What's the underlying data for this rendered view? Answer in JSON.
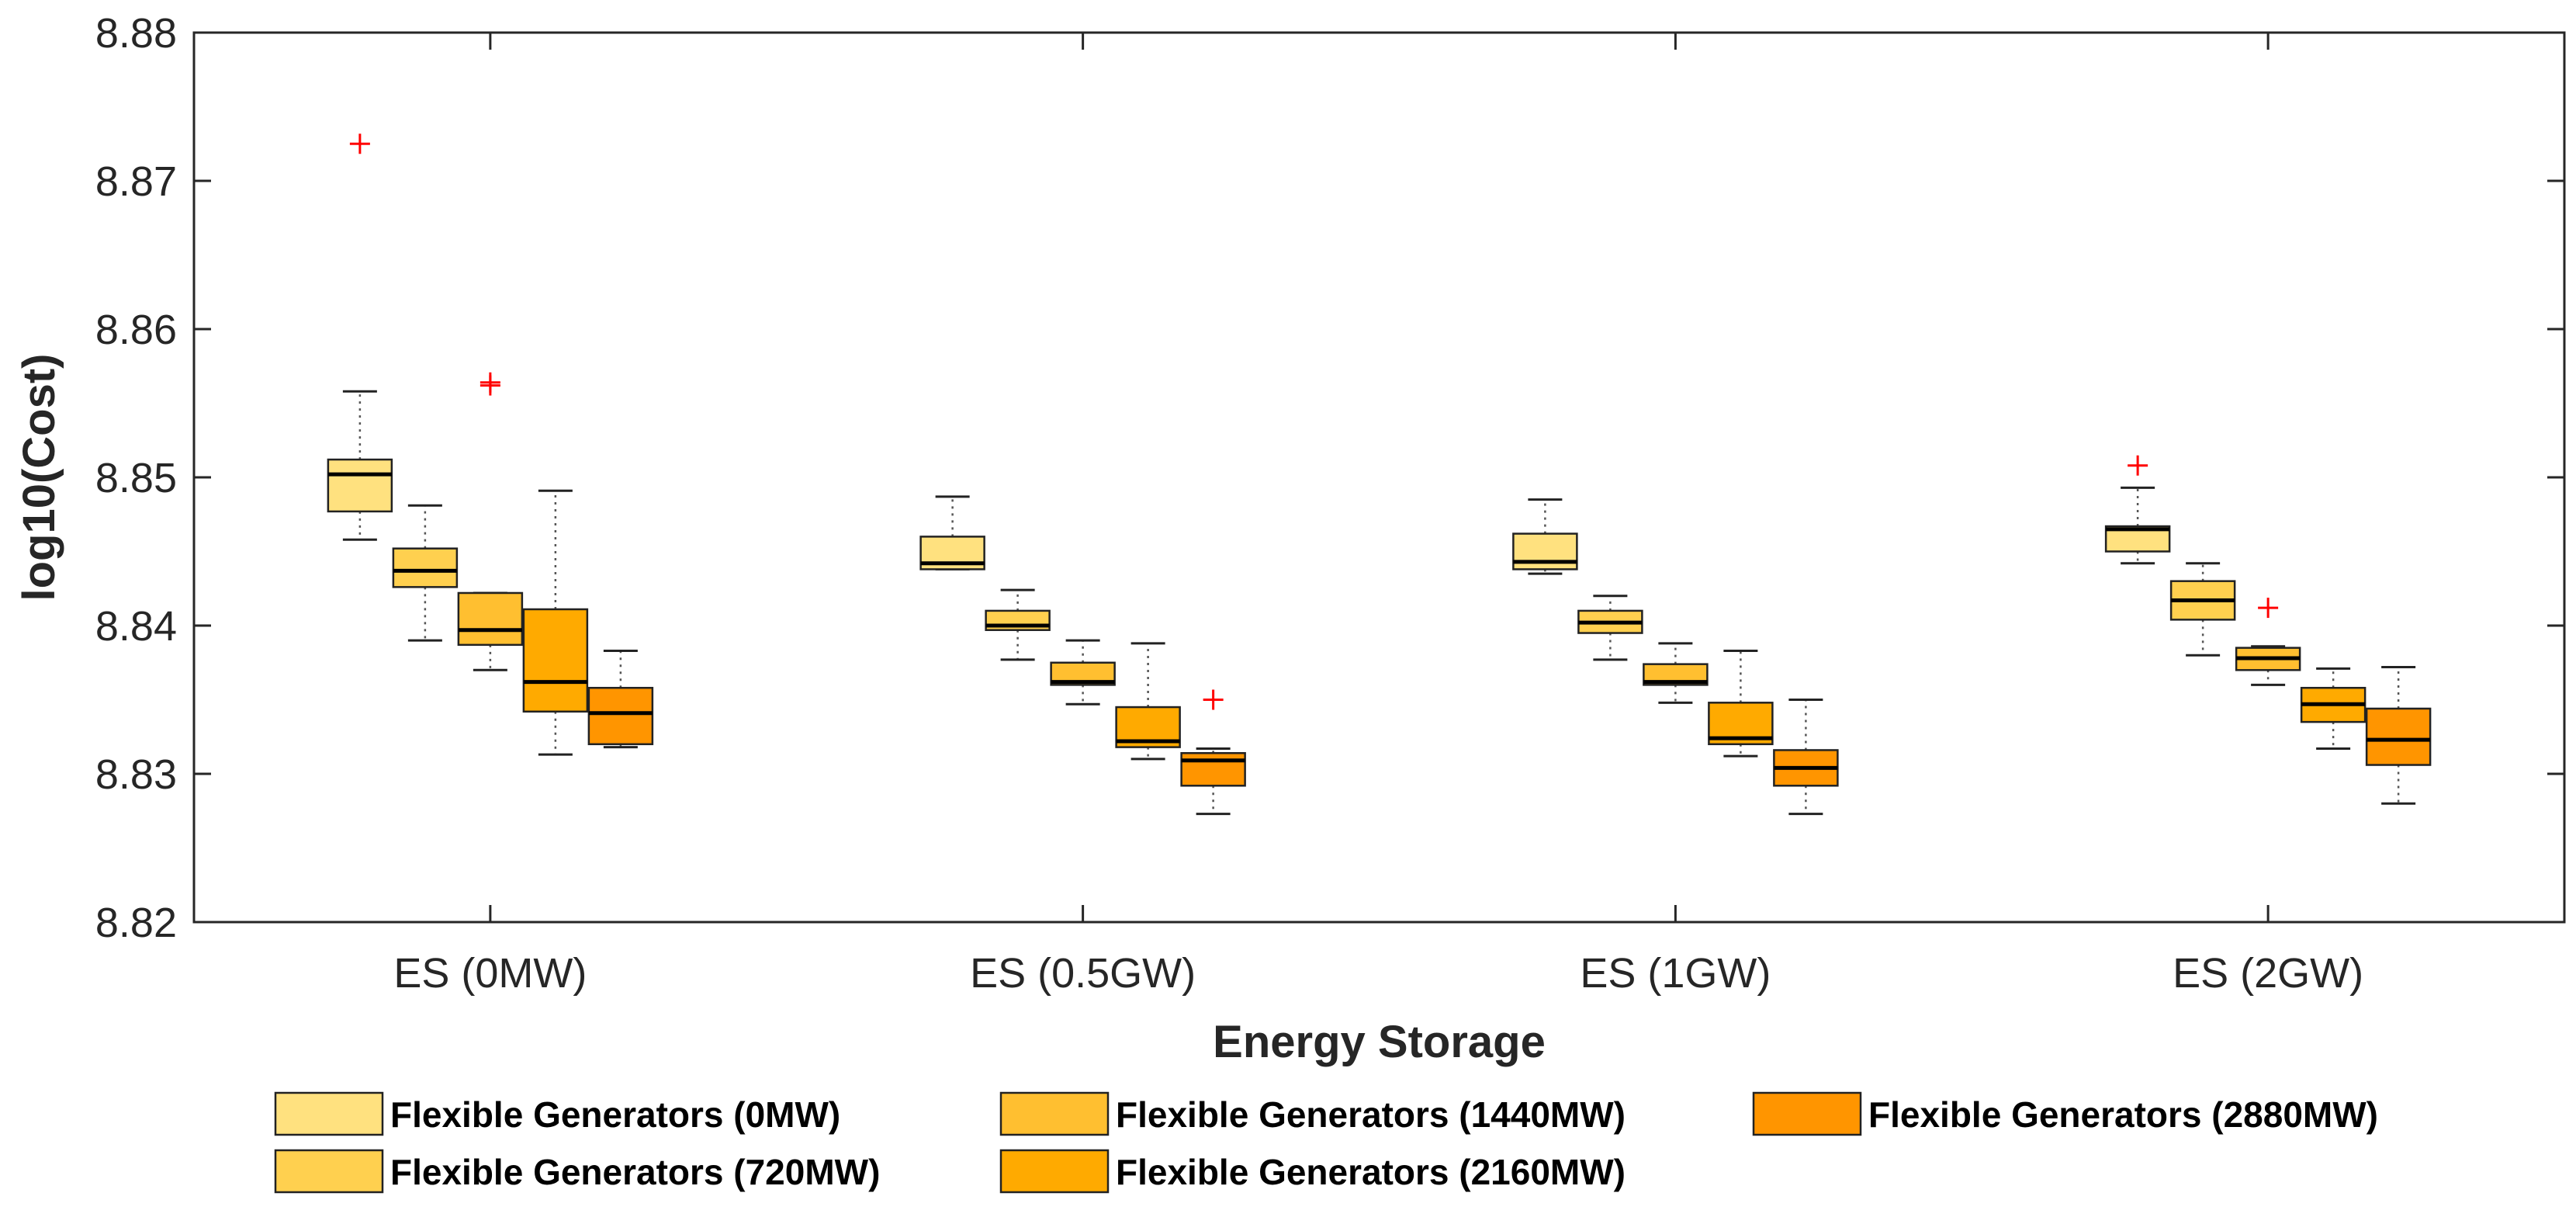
{
  "chart_data": {
    "type": "boxplot",
    "title": "",
    "xlabel": "Energy Storage",
    "ylabel": "log10(Cost)",
    "ylim": [
      8.82,
      8.88
    ],
    "yticks": [
      8.82,
      8.83,
      8.84,
      8.85,
      8.86,
      8.87,
      8.88
    ],
    "ytick_labels": [
      "8.82",
      "8.83",
      "8.84",
      "8.85",
      "8.86",
      "8.87",
      "8.88"
    ],
    "categories": [
      "ES (0MW)",
      "ES (0.5GW)",
      "ES (1GW)",
      "ES (2GW)"
    ],
    "series": [
      {
        "name": "Flexible Generators (0MW)",
        "color": "#FFE17F",
        "boxes": [
          {
            "whisker_low": 8.8458,
            "q1": 8.8477,
            "median": 8.8502,
            "q3": 8.8512,
            "whisker_high": 8.8558,
            "outliers": [
              8.8725
            ]
          },
          {
            "whisker_low": 8.8438,
            "q1": 8.8438,
            "median": 8.8442,
            "q3": 8.846,
            "whisker_high": 8.8487,
            "outliers": []
          },
          {
            "whisker_low": 8.8435,
            "q1": 8.8438,
            "median": 8.8443,
            "q3": 8.8462,
            "whisker_high": 8.8485,
            "outliers": []
          },
          {
            "whisker_low": 8.8442,
            "q1": 8.845,
            "median": 8.8465,
            "q3": 8.8467,
            "whisker_high": 8.8493,
            "outliers": [
              8.8508
            ]
          }
        ]
      },
      {
        "name": "Flexible Generators (720MW)",
        "color": "#FFD04F",
        "boxes": [
          {
            "whisker_low": 8.839,
            "q1": 8.8426,
            "median": 8.8437,
            "q3": 8.8452,
            "whisker_high": 8.8481,
            "outliers": []
          },
          {
            "whisker_low": 8.8377,
            "q1": 8.8397,
            "median": 8.84,
            "q3": 8.841,
            "whisker_high": 8.8424,
            "outliers": []
          },
          {
            "whisker_low": 8.8377,
            "q1": 8.8395,
            "median": 8.8402,
            "q3": 8.841,
            "whisker_high": 8.842,
            "outliers": []
          },
          {
            "whisker_low": 8.838,
            "q1": 8.8404,
            "median": 8.8417,
            "q3": 8.843,
            "whisker_high": 8.8442,
            "outliers": []
          }
        ]
      },
      {
        "name": "Flexible Generators (1440MW)",
        "color": "#FFBF30",
        "boxes": [
          {
            "whisker_low": 8.837,
            "q1": 8.8387,
            "median": 8.8397,
            "q3": 8.8422,
            "whisker_high": 8.8422,
            "outliers": [
              8.8562,
              8.8564
            ]
          },
          {
            "whisker_low": 8.8347,
            "q1": 8.836,
            "median": 8.8362,
            "q3": 8.8375,
            "whisker_high": 8.839,
            "outliers": []
          },
          {
            "whisker_low": 8.8348,
            "q1": 8.836,
            "median": 8.8362,
            "q3": 8.8374,
            "whisker_high": 8.8388,
            "outliers": []
          },
          {
            "whisker_low": 8.836,
            "q1": 8.837,
            "median": 8.8378,
            "q3": 8.8385,
            "whisker_high": 8.8386,
            "outliers": [
              8.8412
            ]
          }
        ]
      },
      {
        "name": "Flexible Generators (2160MW)",
        "color": "#FFAA00",
        "boxes": [
          {
            "whisker_low": 8.8313,
            "q1": 8.8342,
            "median": 8.8362,
            "q3": 8.8411,
            "whisker_high": 8.8491,
            "outliers": []
          },
          {
            "whisker_low": 8.831,
            "q1": 8.8318,
            "median": 8.8322,
            "q3": 8.8345,
            "whisker_high": 8.8388,
            "outliers": []
          },
          {
            "whisker_low": 8.8312,
            "q1": 8.832,
            "median": 8.8324,
            "q3": 8.8348,
            "whisker_high": 8.8383,
            "outliers": []
          },
          {
            "whisker_low": 8.8317,
            "q1": 8.8335,
            "median": 8.8347,
            "q3": 8.8358,
            "whisker_high": 8.8371,
            "outliers": []
          }
        ]
      },
      {
        "name": "Flexible Generators (2880MW)",
        "color": "#FF9500",
        "boxes": [
          {
            "whisker_low": 8.8318,
            "q1": 8.832,
            "median": 8.8341,
            "q3": 8.8358,
            "whisker_high": 8.8383,
            "outliers": []
          },
          {
            "whisker_low": 8.8273,
            "q1": 8.8292,
            "median": 8.8309,
            "q3": 8.8314,
            "whisker_high": 8.8317,
            "outliers": [
              8.835
            ]
          },
          {
            "whisker_low": 8.8273,
            "q1": 8.8292,
            "median": 8.8304,
            "q3": 8.8316,
            "whisker_high": 8.835,
            "outliers": []
          },
          {
            "whisker_low": 8.828,
            "q1": 8.8306,
            "median": 8.8323,
            "q3": 8.8344,
            "whisker_high": 8.8372,
            "outliers": []
          }
        ]
      }
    ],
    "legend": {
      "entries": [
        "Flexible Generators (0MW)",
        "Flexible Generators (1440MW)",
        "Flexible Generators (2880MW)",
        "Flexible Generators (720MW)",
        "Flexible Generators (2160MW)"
      ],
      "placement": "bottom"
    },
    "colors": {
      "median": "#000000",
      "outlier": "#FF0000",
      "whisker": "#555555",
      "axis": "#262626"
    }
  }
}
